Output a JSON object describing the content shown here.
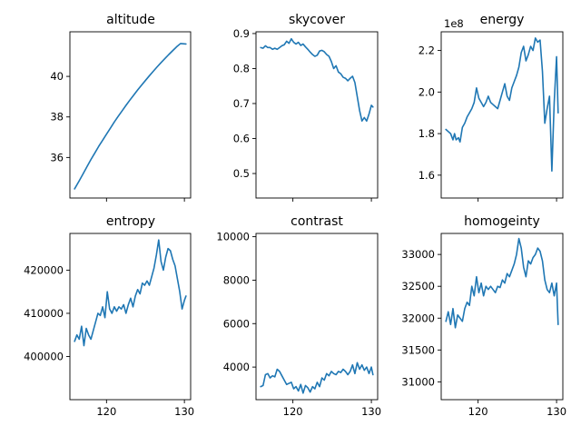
{
  "figure": {
    "background": "#ffffff",
    "line_color": "#1f77b4"
  },
  "chart_data": [
    {
      "type": "line",
      "title": "altitude",
      "xlabel": "",
      "ylabel": "",
      "xlim": [
        115.3,
        130.8
      ],
      "ylim": [
        34.0,
        42.2
      ],
      "xticks": [
        120,
        130
      ],
      "xtick_labels": [
        "",
        ""
      ],
      "yticks": [
        36,
        38,
        40
      ],
      "ytick_labels": [
        "36",
        "38",
        "40"
      ],
      "offset_label": "",
      "x": [
        115.9,
        116.5,
        117.0,
        117.5,
        118.0,
        118.5,
        119.0,
        119.5,
        120.0,
        120.5,
        121.0,
        121.5,
        122.0,
        122.5,
        123.0,
        123.5,
        124.0,
        124.5,
        125.0,
        125.5,
        126.0,
        126.5,
        127.0,
        127.5,
        128.0,
        128.5,
        129.0,
        129.5,
        130.2
      ],
      "y": [
        34.45,
        34.85,
        35.2,
        35.55,
        35.9,
        36.22,
        36.55,
        36.85,
        37.15,
        37.45,
        37.75,
        38.03,
        38.3,
        38.57,
        38.83,
        39.08,
        39.33,
        39.57,
        39.8,
        40.03,
        40.25,
        40.47,
        40.68,
        40.88,
        41.08,
        41.27,
        41.46,
        41.62,
        41.6
      ]
    },
    {
      "type": "line",
      "title": "skycover",
      "xlabel": "",
      "ylabel": "",
      "xlim": [
        115.3,
        130.8
      ],
      "ylim": [
        0.43,
        0.905
      ],
      "xticks": [
        120,
        130
      ],
      "xtick_labels": [
        "",
        ""
      ],
      "yticks": [
        0.5,
        0.6,
        0.7,
        0.8,
        0.9
      ],
      "ytick_labels": [
        "0.5",
        "0.6",
        "0.7",
        "0.8",
        "0.9"
      ],
      "offset_label": "",
      "x": [
        115.9,
        116.2,
        116.5,
        116.8,
        117.1,
        117.4,
        117.7,
        118.0,
        118.3,
        118.6,
        118.9,
        119.2,
        119.5,
        119.8,
        120.1,
        120.4,
        120.7,
        121.0,
        121.3,
        121.6,
        121.9,
        122.2,
        122.5,
        122.8,
        123.1,
        123.4,
        123.7,
        124.0,
        124.3,
        124.6,
        124.9,
        125.2,
        125.5,
        125.8,
        126.1,
        126.4,
        126.7,
        127.0,
        127.3,
        127.6,
        127.9,
        128.2,
        128.5,
        128.8,
        129.1,
        129.4,
        129.7,
        130.0,
        130.2
      ],
      "y": [
        0.86,
        0.858,
        0.865,
        0.86,
        0.86,
        0.855,
        0.858,
        0.855,
        0.86,
        0.865,
        0.868,
        0.878,
        0.872,
        0.885,
        0.875,
        0.87,
        0.875,
        0.866,
        0.87,
        0.862,
        0.855,
        0.847,
        0.84,
        0.835,
        0.838,
        0.85,
        0.852,
        0.848,
        0.84,
        0.835,
        0.82,
        0.8,
        0.808,
        0.79,
        0.785,
        0.775,
        0.772,
        0.765,
        0.772,
        0.778,
        0.76,
        0.72,
        0.68,
        0.65,
        0.66,
        0.65,
        0.67,
        0.695,
        0.69
      ]
    },
    {
      "type": "line",
      "title": "energy",
      "xlabel": "",
      "ylabel": "",
      "xlim": [
        115.3,
        130.8
      ],
      "ylim": [
        149000000.0,
        229000000.0
      ],
      "xticks": [
        120,
        130
      ],
      "xtick_labels": [
        "",
        ""
      ],
      "yticks": [
        160000000.0,
        180000000.0,
        200000000.0,
        220000000.0
      ],
      "ytick_labels": [
        "1.6",
        "1.8",
        "2.0",
        "2.2"
      ],
      "offset_label": "1e8",
      "x": [
        115.9,
        116.2,
        116.5,
        116.8,
        117.0,
        117.2,
        117.5,
        117.7,
        118.0,
        118.3,
        118.6,
        118.9,
        119.2,
        119.5,
        119.8,
        120.1,
        120.4,
        120.7,
        121.0,
        121.3,
        121.6,
        121.9,
        122.2,
        122.5,
        122.8,
        123.1,
        123.4,
        123.7,
        124.0,
        124.3,
        124.6,
        124.9,
        125.2,
        125.5,
        125.8,
        126.1,
        126.4,
        126.7,
        127.0,
        127.3,
        127.6,
        127.9,
        128.2,
        128.5,
        128.8,
        129.1,
        129.4,
        129.7,
        130.0,
        130.2
      ],
      "y": [
        182000000.0,
        181000000.0,
        180000000.0,
        177000000.0,
        180000000.0,
        177000000.0,
        178000000.0,
        176000000.0,
        183000000.0,
        185000000.0,
        188000000.0,
        190000000.0,
        192000000.0,
        195000000.0,
        202000000.0,
        197000000.0,
        195000000.0,
        193000000.0,
        195000000.0,
        198000000.0,
        195000000.0,
        194000000.0,
        193000000.0,
        192000000.0,
        196000000.0,
        200000000.0,
        204000000.0,
        198000000.0,
        196000000.0,
        202000000.0,
        205000000.0,
        208000000.0,
        212000000.0,
        219000000.0,
        222000000.0,
        215000000.0,
        218000000.0,
        222000000.0,
        220000000.0,
        226000000.0,
        224000000.0,
        225000000.0,
        210000000.0,
        185000000.0,
        192000000.0,
        198000000.0,
        162000000.0,
        195000000.0,
        217000000.0,
        190000000.0
      ]
    },
    {
      "type": "line",
      "title": "entropy",
      "xlabel": "",
      "ylabel": "",
      "xlim": [
        115.3,
        130.8
      ],
      "ylim": [
        390000,
        428500
      ],
      "xticks": [
        120,
        130
      ],
      "xtick_labels": [
        "120",
        "130"
      ],
      "yticks": [
        400000,
        410000,
        420000
      ],
      "ytick_labels": [
        "400000",
        "410000",
        "420000"
      ],
      "offset_label": "",
      "x": [
        115.9,
        116.2,
        116.5,
        116.8,
        117.1,
        117.4,
        117.7,
        118.0,
        118.3,
        118.6,
        118.9,
        119.2,
        119.5,
        119.8,
        120.1,
        120.4,
        120.7,
        121.0,
        121.3,
        121.6,
        121.9,
        122.2,
        122.5,
        122.8,
        123.1,
        123.4,
        123.7,
        124.0,
        124.3,
        124.6,
        124.9,
        125.2,
        125.5,
        125.8,
        126.1,
        126.4,
        126.7,
        127.0,
        127.3,
        127.6,
        127.9,
        128.2,
        128.5,
        128.8,
        129.1,
        129.4,
        129.7,
        130.0,
        130.2
      ],
      "y": [
        403500,
        405000,
        404000,
        407000,
        402500,
        406500,
        405000,
        404000,
        406000,
        408000,
        410000,
        409500,
        411500,
        409000,
        415000,
        411000,
        410000,
        411500,
        410500,
        411500,
        411000,
        412000,
        410000,
        412000,
        413500,
        411500,
        414000,
        415500,
        414500,
        417000,
        416500,
        417500,
        416500,
        418500,
        420500,
        423500,
        427000,
        422000,
        420000,
        423000,
        425000,
        424500,
        422500,
        421000,
        418000,
        415000,
        411000,
        413000,
        414000
      ]
    },
    {
      "type": "line",
      "title": "contrast",
      "xlabel": "",
      "ylabel": "",
      "xlim": [
        115.3,
        130.8
      ],
      "ylim": [
        2500,
        10150
      ],
      "xticks": [
        120,
        130
      ],
      "xtick_labels": [
        "120",
        "130"
      ],
      "yticks": [
        4000,
        6000,
        8000,
        10000
      ],
      "ytick_labels": [
        "4000",
        "6000",
        "8000",
        "10000"
      ],
      "offset_label": "",
      "x": [
        115.9,
        116.2,
        116.5,
        116.8,
        117.1,
        117.4,
        117.7,
        118.0,
        118.3,
        118.6,
        118.9,
        119.2,
        119.5,
        119.8,
        120.1,
        120.4,
        120.7,
        121.0,
        121.3,
        121.6,
        121.9,
        122.2,
        122.5,
        122.8,
        123.1,
        123.4,
        123.7,
        124.0,
        124.3,
        124.6,
        124.9,
        125.2,
        125.5,
        125.8,
        126.1,
        126.4,
        126.7,
        127.0,
        127.3,
        127.6,
        127.9,
        128.2,
        128.5,
        128.8,
        129.1,
        129.4,
        129.7,
        130.0,
        130.2
      ],
      "y": [
        3100,
        3150,
        3650,
        3700,
        3500,
        3600,
        3550,
        3900,
        3800,
        3600,
        3400,
        3200,
        3250,
        3300,
        3000,
        3100,
        2900,
        3200,
        2800,
        3150,
        3050,
        2850,
        3100,
        3000,
        3300,
        3100,
        3500,
        3400,
        3700,
        3600,
        3800,
        3700,
        3650,
        3800,
        3750,
        3900,
        3800,
        3650,
        3800,
        4100,
        3700,
        4200,
        3900,
        4100,
        3850,
        4000,
        3700,
        4000,
        3650
      ]
    },
    {
      "type": "line",
      "title": "homogeinty",
      "xlabel": "",
      "ylabel": "",
      "xlim": [
        115.3,
        130.8
      ],
      "ylim": [
        30720,
        33330
      ],
      "xticks": [
        120,
        130
      ],
      "xtick_labels": [
        "120",
        "130"
      ],
      "yticks": [
        31000,
        31500,
        32000,
        32500,
        33000
      ],
      "ytick_labels": [
        "31000",
        "31500",
        "32000",
        "32500",
        "33000"
      ],
      "offset_label": "",
      "x": [
        115.9,
        116.2,
        116.5,
        116.8,
        117.1,
        117.4,
        117.7,
        118.0,
        118.3,
        118.6,
        118.9,
        119.2,
        119.5,
        119.8,
        120.1,
        120.4,
        120.7,
        121.0,
        121.3,
        121.6,
        121.9,
        122.2,
        122.5,
        122.8,
        123.1,
        123.4,
        123.7,
        124.0,
        124.3,
        124.6,
        124.9,
        125.2,
        125.5,
        125.8,
        126.1,
        126.4,
        126.7,
        127.0,
        127.3,
        127.6,
        127.9,
        128.2,
        128.5,
        128.8,
        129.1,
        129.4,
        129.7,
        130.0,
        130.2
      ],
      "y": [
        31950,
        32100,
        31900,
        32150,
        31850,
        32050,
        32000,
        31950,
        32150,
        32250,
        32200,
        32500,
        32350,
        32650,
        32400,
        32550,
        32350,
        32500,
        32450,
        32500,
        32450,
        32400,
        32500,
        32480,
        32600,
        32550,
        32700,
        32650,
        32750,
        32850,
        33000,
        33250,
        33100,
        32800,
        32650,
        32900,
        32850,
        32950,
        33000,
        33100,
        33050,
        32900,
        32600,
        32450,
        32400,
        32550,
        32350,
        32550,
        31900
      ]
    }
  ]
}
